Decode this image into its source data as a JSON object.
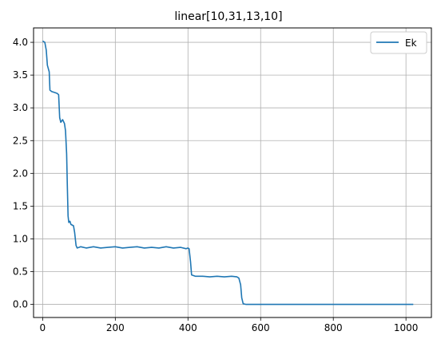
{
  "chart_data": {
    "type": "line",
    "title": "linear[10,31,13,10]",
    "xlabel": "",
    "ylabel": "",
    "xlim": [
      -25,
      1070
    ],
    "ylim": [
      -0.2,
      4.22
    ],
    "xticks": [
      0,
      200,
      400,
      600,
      800,
      1000
    ],
    "yticks": [
      0.0,
      0.5,
      1.0,
      1.5,
      2.0,
      2.5,
      3.0,
      3.5,
      4.0
    ],
    "xtick_labels": [
      "0",
      "200",
      "400",
      "600",
      "800",
      "1000"
    ],
    "ytick_labels": [
      "0.0",
      "0.5",
      "1.0",
      "1.5",
      "2.0",
      "2.5",
      "3.0",
      "3.5",
      "4.0"
    ],
    "grid": true,
    "legend_position": "top-right",
    "series": [
      {
        "name": "Ek",
        "color": "#1f77b4",
        "x": [
          0,
          6,
          10,
          13,
          18,
          20,
          25,
          35,
          40,
          44,
          47,
          50,
          55,
          60,
          63,
          66,
          68,
          70,
          72,
          75,
          78,
          85,
          88,
          92,
          95,
          100,
          105,
          120,
          140,
          160,
          180,
          200,
          220,
          240,
          260,
          280,
          300,
          320,
          340,
          360,
          380,
          395,
          400,
          403,
          407,
          410,
          420,
          440,
          460,
          480,
          500,
          520,
          535,
          540,
          545,
          548,
          552,
          560,
          600,
          700,
          800,
          900,
          1000,
          1020
        ],
        "y": [
          4.02,
          4.0,
          3.88,
          3.65,
          3.55,
          3.27,
          3.25,
          3.23,
          3.22,
          3.2,
          2.85,
          2.78,
          2.82,
          2.76,
          2.65,
          2.3,
          1.8,
          1.35,
          1.25,
          1.27,
          1.22,
          1.2,
          1.1,
          0.9,
          0.86,
          0.87,
          0.88,
          0.86,
          0.88,
          0.86,
          0.87,
          0.88,
          0.86,
          0.87,
          0.88,
          0.86,
          0.87,
          0.86,
          0.88,
          0.86,
          0.87,
          0.85,
          0.86,
          0.85,
          0.65,
          0.45,
          0.43,
          0.43,
          0.42,
          0.43,
          0.42,
          0.43,
          0.42,
          0.4,
          0.3,
          0.1,
          0.01,
          0.0,
          0.0,
          0.0,
          0.0,
          0.0,
          0.0,
          0.0
        ]
      }
    ]
  }
}
